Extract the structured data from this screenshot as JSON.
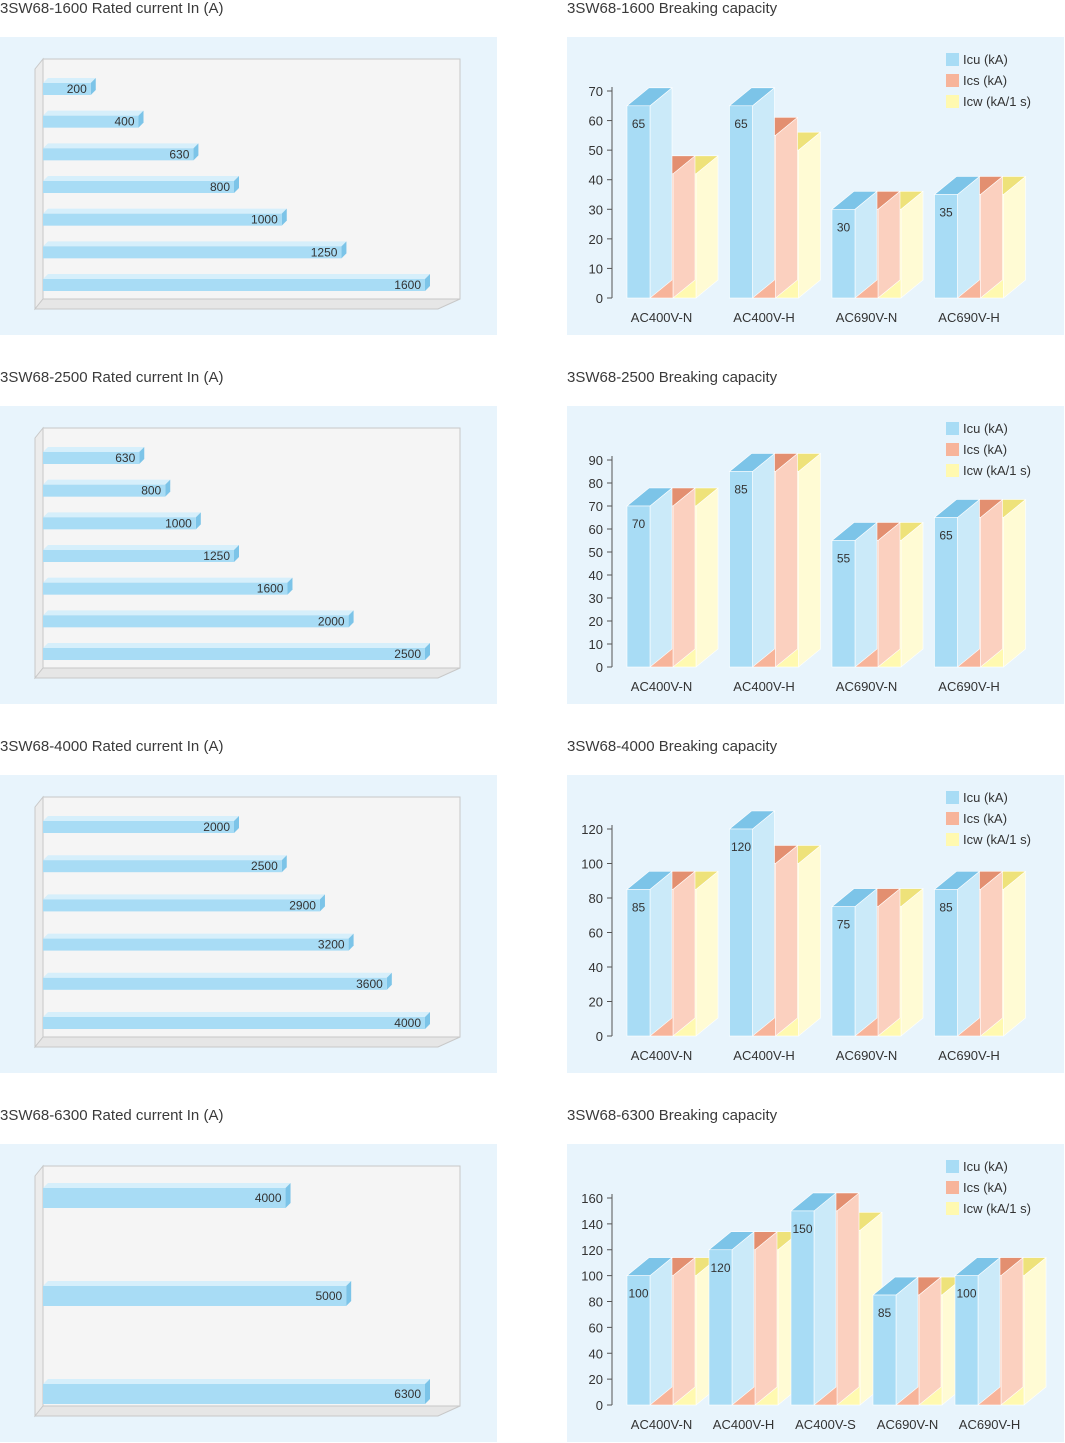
{
  "colors": {
    "icu": "#a8dcf5",
    "ics": "#f7b49a",
    "icw": "#fff9b0",
    "bar": "#a8dcf5",
    "panel": "#e8f4fc"
  },
  "legend": [
    "Icu (kA)",
    "Ics (kA)",
    "Icw (kA/1 s)"
  ],
  "chart_data": [
    {
      "type": "bar",
      "orientation": "horizontal",
      "title": "3SW68-1600 Rated current In (A)",
      "values": [
        200,
        400,
        630,
        800,
        1000,
        1250,
        1600
      ],
      "labels": [
        "200",
        "400",
        "630",
        "800",
        "1000",
        "1250",
        "1600"
      ],
      "xlim": [
        0,
        1700
      ]
    },
    {
      "type": "bar",
      "title": "3SW68-1600 Breaking capacity",
      "categories": [
        "AC400V-N",
        "AC400V-H",
        "AC690V-N",
        "AC690V-H"
      ],
      "ylim": [
        0,
        70
      ],
      "ticks": [
        "0",
        "10",
        "20",
        "30",
        "40",
        "50",
        "60",
        "70"
      ],
      "series": [
        {
          "name": "Icu (kA)",
          "values": [
            65,
            65,
            30,
            35
          ],
          "labels": [
            "65",
            "65",
            "30",
            "35"
          ]
        },
        {
          "name": "Ics (kA)",
          "values": [
            42,
            55,
            30,
            35
          ],
          "labels": [
            "42",
            "55",
            "30",
            "35"
          ]
        },
        {
          "name": "Icw (kA/1 s)",
          "values": [
            42,
            50,
            30,
            35
          ],
          "labels": [
            "42",
            "50",
            "30",
            "35"
          ]
        }
      ]
    },
    {
      "type": "bar",
      "orientation": "horizontal",
      "title": "3SW68-2500 Rated current In (A)",
      "values": [
        630,
        800,
        1000,
        1250,
        1600,
        2000,
        2500
      ],
      "labels": [
        "630",
        "800",
        "1000",
        "1250",
        "1600",
        "2000",
        "2500"
      ],
      "xlim": [
        0,
        2630
      ]
    },
    {
      "type": "bar",
      "title": "3SW68-2500 Breaking capacity",
      "categories": [
        "AC400V-N",
        "AC400V-H",
        "AC690V-N",
        "AC690V-H"
      ],
      "ylim": [
        0,
        90
      ],
      "ticks": [
        "0",
        "10",
        "20",
        "30",
        "40",
        "50",
        "60",
        "70",
        "80",
        "90"
      ],
      "series": [
        {
          "name": "Icu (kA)",
          "values": [
            70,
            85,
            55,
            65
          ],
          "labels": [
            "70",
            "85",
            "55",
            "65"
          ]
        },
        {
          "name": "Ics (kA)",
          "values": [
            70,
            85,
            55,
            65
          ],
          "labels": [
            "70",
            "85",
            "55",
            "65"
          ]
        },
        {
          "name": "Icw (kA/1 s)",
          "values": [
            70,
            85,
            55,
            65
          ],
          "labels": [
            "70",
            "85",
            "55",
            "65"
          ]
        }
      ]
    },
    {
      "type": "bar",
      "orientation": "horizontal",
      "title": "3SW68-4000 Rated current In (A)",
      "values": [
        2000,
        2500,
        2900,
        3200,
        3600,
        4000
      ],
      "labels": [
        "2000",
        "2500",
        "2900",
        "3200",
        "3600",
        "4000"
      ],
      "xlim": [
        0,
        4200
      ]
    },
    {
      "type": "bar",
      "title": "3SW68-4000 Breaking capacity",
      "categories": [
        "AC400V-N",
        "AC400V-H",
        "AC690V-N",
        "AC690V-H"
      ],
      "ylim": [
        0,
        120
      ],
      "ticks": [
        "0",
        "20",
        "40",
        "60",
        "80",
        "100",
        "120"
      ],
      "series": [
        {
          "name": "Icu (kA)",
          "values": [
            85,
            120,
            75,
            85
          ],
          "labels": [
            "85",
            "120",
            "75",
            "85"
          ]
        },
        {
          "name": "Ics (kA)",
          "values": [
            85,
            100,
            75,
            85
          ],
          "labels": [
            "85",
            "100",
            "75",
            "85"
          ]
        },
        {
          "name": "Icw (kA/1 s)",
          "values": [
            85,
            100,
            75,
            85
          ],
          "labels": [
            "85",
            "100",
            "75",
            "85"
          ]
        }
      ]
    },
    {
      "type": "bar",
      "orientation": "horizontal",
      "title": "3SW68-6300 Rated current In (A)",
      "values": [
        4000,
        5000,
        6300
      ],
      "labels": [
        "4000",
        "5000",
        "6300"
      ],
      "xlim": [
        0,
        6630
      ]
    },
    {
      "type": "bar",
      "title": "3SW68-6300 Breaking capacity",
      "categories": [
        "AC400V-N",
        "AC400V-H",
        "AC400V-S",
        "AC690V-N",
        "AC690V-H"
      ],
      "ylim": [
        0,
        160
      ],
      "ticks": [
        "0",
        "20",
        "40",
        "60",
        "80",
        "100",
        "120",
        "140",
        "160"
      ],
      "series": [
        {
          "name": "Icu (kA)",
          "values": [
            100,
            120,
            150,
            85,
            100
          ],
          "labels": [
            "100",
            "120",
            "150",
            "85",
            "100"
          ]
        },
        {
          "name": "Ics (kA)",
          "values": [
            100,
            120,
            150,
            85,
            100
          ],
          "labels": [
            "100",
            "120",
            "150",
            "85",
            "100"
          ]
        },
        {
          "name": "Icw (kA/1 s)",
          "values": [
            100,
            120,
            135,
            85,
            100
          ],
          "labels": [
            "100",
            "120",
            "135",
            "85",
            "100"
          ]
        }
      ]
    }
  ]
}
